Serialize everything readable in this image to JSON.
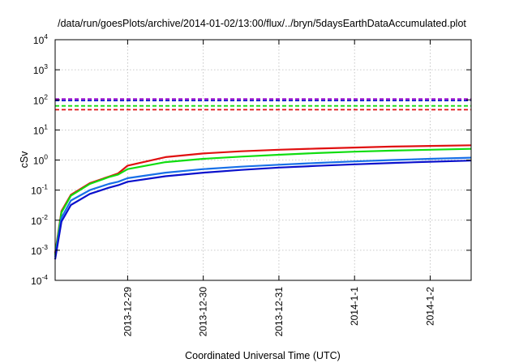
{
  "chart_data": {
    "type": "line",
    "title": "/data/run/goesPlots/archive/2014-01-02/13:00/flux/../bryn/5daysEarthDataAccumulated.plot",
    "xlabel": "Coordinated Universal Time (UTC)",
    "ylabel": "cSv",
    "y_scale": "log",
    "ylim": [
      0.0001,
      10000
    ],
    "y_ticks": [
      {
        "base": "10",
        "exp": "-4"
      },
      {
        "base": "10",
        "exp": "-3"
      },
      {
        "base": "10",
        "exp": "-2"
      },
      {
        "base": "10",
        "exp": "-1"
      },
      {
        "base": "10",
        "exp": "0"
      },
      {
        "base": "10",
        "exp": "1"
      },
      {
        "base": "10",
        "exp": "2"
      },
      {
        "base": "10",
        "exp": "3"
      },
      {
        "base": "10",
        "exp": "4"
      }
    ],
    "xlim": [
      "2013-12-28 01:00",
      "2014-01-02 13:00"
    ],
    "x_ticks": [
      "2013-12-29",
      "2013-12-30",
      "2013-12-31",
      "2014-1-1",
      "2014-1-2"
    ],
    "grid": true,
    "series": [
      {
        "color": "#e01010",
        "style": "solid",
        "x": [
          "2013-12-28 01:00",
          "2013-12-28 03:00",
          "2013-12-28 06:00",
          "2013-12-28 12:00",
          "2013-12-28 18:00",
          "2013-12-28 21:00",
          "2013-12-29 00:00",
          "2013-12-29 12:00",
          "2013-12-30 00:00",
          "2013-12-30 12:00",
          "2013-12-31 00:00",
          "2013-12-31 12:00",
          "2014-01-01 00:00",
          "2014-01-01 12:00",
          "2014-01-02 00:00",
          "2014-01-02 13:00"
        ],
        "values": [
          0.0008,
          0.02,
          0.07,
          0.17,
          0.28,
          0.36,
          0.65,
          1.25,
          1.65,
          1.95,
          2.2,
          2.4,
          2.6,
          2.8,
          2.95,
          3.1
        ]
      },
      {
        "color": "#10dd10",
        "style": "solid",
        "x": [
          "2013-12-28 01:00",
          "2013-12-28 03:00",
          "2013-12-28 06:00",
          "2013-12-28 12:00",
          "2013-12-28 18:00",
          "2013-12-28 21:00",
          "2013-12-29 00:00",
          "2013-12-29 12:00",
          "2013-12-30 00:00",
          "2013-12-30 12:00",
          "2013-12-31 00:00",
          "2013-12-31 12:00",
          "2014-01-01 00:00",
          "2014-01-01 12:00",
          "2014-01-02 00:00",
          "2014-01-02 13:00"
        ],
        "values": [
          0.0007,
          0.018,
          0.065,
          0.16,
          0.27,
          0.33,
          0.5,
          0.85,
          1.1,
          1.3,
          1.5,
          1.7,
          1.9,
          2.05,
          2.2,
          2.35
        ]
      },
      {
        "color": "#1870e8",
        "style": "solid",
        "x": [
          "2013-12-28 01:00",
          "2013-12-28 03:00",
          "2013-12-28 06:00",
          "2013-12-28 12:00",
          "2013-12-28 18:00",
          "2013-12-28 21:00",
          "2013-12-29 00:00",
          "2013-12-29 12:00",
          "2013-12-30 00:00",
          "2013-12-30 12:00",
          "2013-12-31 00:00",
          "2013-12-31 12:00",
          "2014-01-01 00:00",
          "2014-01-01 12:00",
          "2014-01-02 00:00",
          "2014-01-02 13:00"
        ],
        "values": [
          0.0006,
          0.012,
          0.045,
          0.1,
          0.16,
          0.19,
          0.25,
          0.38,
          0.5,
          0.6,
          0.7,
          0.8,
          0.9,
          1.0,
          1.1,
          1.2
        ]
      },
      {
        "color": "#0a10cc",
        "style": "solid",
        "x": [
          "2013-12-28 01:00",
          "2013-12-28 03:00",
          "2013-12-28 06:00",
          "2013-12-28 12:00",
          "2013-12-28 18:00",
          "2013-12-28 21:00",
          "2013-12-29 00:00",
          "2013-12-29 12:00",
          "2013-12-30 00:00",
          "2013-12-30 12:00",
          "2013-12-31 00:00",
          "2013-12-31 12:00",
          "2014-01-01 00:00",
          "2014-01-01 12:00",
          "2014-01-02 00:00",
          "2014-01-02 13:00"
        ],
        "values": [
          0.0005,
          0.009,
          0.032,
          0.075,
          0.12,
          0.145,
          0.19,
          0.29,
          0.38,
          0.47,
          0.56,
          0.64,
          0.72,
          0.8,
          0.88,
          0.96
        ]
      },
      {
        "color": "#e01010",
        "style": "dashed",
        "x": [
          "2013-12-28 01:00",
          "2014-01-02 13:00"
        ],
        "values": [
          47,
          47
        ]
      },
      {
        "color": "#10dd10",
        "style": "dashed",
        "x": [
          "2013-12-28 01:00",
          "2014-01-02 13:00"
        ],
        "values": [
          63,
          63
        ]
      },
      {
        "color": "#0a10cc",
        "style": "dashed",
        "x": [
          "2013-12-28 01:00",
          "2014-01-02 13:00"
        ],
        "values": [
          95,
          95
        ]
      },
      {
        "color": "#a010d0",
        "style": "dashed",
        "x": [
          "2013-12-28 01:00",
          "2014-01-02 13:00"
        ],
        "values": [
          107,
          107
        ]
      }
    ]
  }
}
